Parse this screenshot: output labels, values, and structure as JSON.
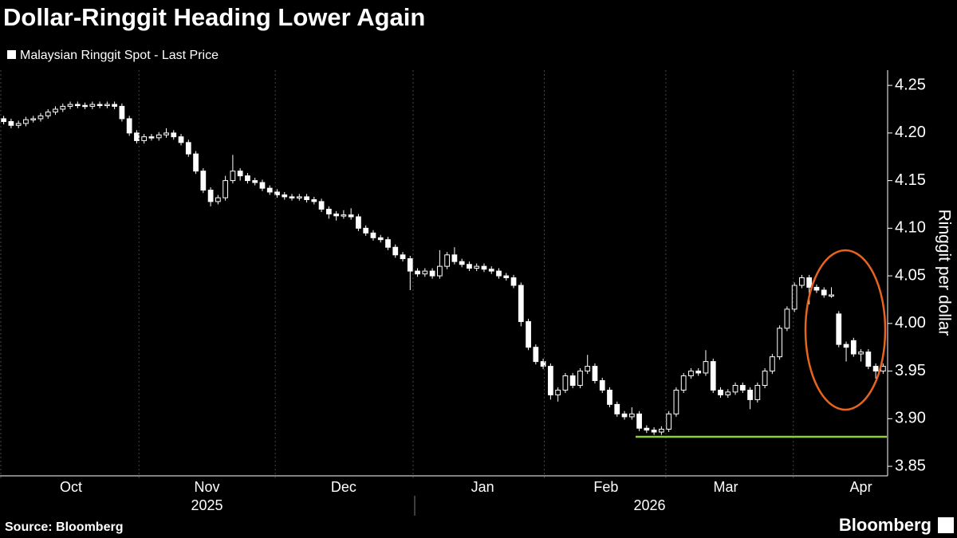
{
  "chart_data": {
    "type": "candlestick",
    "title": "Dollar-Ringgit Heading Lower Again",
    "series_name": "Malaysian Ringgit Spot - Last Price",
    "y_label": "Ringgit per dollar",
    "source": "Source: Bloomberg",
    "brand": "Bloomberg",
    "color": "#ffffff",
    "categories": [
      null,
      null,
      null,
      null,
      null,
      null,
      null,
      null,
      null,
      null,
      null,
      null,
      null,
      null,
      null,
      null,
      null,
      null,
      null,
      null,
      null,
      null,
      null,
      null,
      null,
      null,
      null,
      null,
      null,
      null,
      null,
      null,
      null,
      null,
      null,
      null,
      null,
      null,
      null,
      null,
      null,
      null,
      null,
      null,
      null,
      null,
      null,
      null,
      null,
      null,
      null,
      null,
      null,
      null,
      null,
      null,
      null,
      null,
      null,
      null,
      null,
      null,
      null,
      null,
      null,
      null,
      null,
      null,
      null,
      null,
      null,
      null,
      null,
      null,
      null,
      null,
      null,
      null,
      null,
      null,
      null,
      null,
      null,
      null,
      null,
      null,
      null,
      null,
      null,
      null,
      null,
      null,
      null,
      null,
      null,
      null,
      null,
      null,
      null,
      null,
      null,
      null,
      null,
      null,
      null,
      null,
      null,
      null,
      null,
      null,
      null,
      null,
      null,
      null,
      null,
      null,
      null,
      null,
      null,
      null
    ],
    "ohlc": [
      [
        4.215,
        4.218,
        4.209,
        4.212
      ],
      [
        4.212,
        4.215,
        4.205,
        4.208
      ],
      [
        4.208,
        4.213,
        4.205,
        4.21
      ],
      [
        4.21,
        4.217,
        4.207,
        4.214
      ],
      [
        4.214,
        4.218,
        4.211,
        4.215
      ],
      [
        4.215,
        4.221,
        4.212,
        4.218
      ],
      [
        4.218,
        4.225,
        4.215,
        4.222
      ],
      [
        4.222,
        4.228,
        4.219,
        4.225
      ],
      [
        4.225,
        4.231,
        4.222,
        4.228
      ],
      [
        4.228,
        4.233,
        4.225,
        4.23
      ],
      [
        4.23,
        4.233,
        4.226,
        4.229
      ],
      [
        4.229,
        4.232,
        4.225,
        4.228
      ],
      [
        4.228,
        4.233,
        4.225,
        4.23
      ],
      [
        4.23,
        4.233,
        4.226,
        4.229
      ],
      [
        4.229,
        4.233,
        4.226,
        4.23
      ],
      [
        4.23,
        4.233,
        4.225,
        4.228
      ],
      [
        4.228,
        4.231,
        4.212,
        4.215
      ],
      [
        4.215,
        4.218,
        4.197,
        4.2
      ],
      [
        4.2,
        4.203,
        4.189,
        4.192
      ],
      [
        4.192,
        4.199,
        4.189,
        4.196
      ],
      [
        4.196,
        4.199,
        4.192,
        4.195
      ],
      [
        4.195,
        4.201,
        4.192,
        4.198
      ],
      [
        4.198,
        4.205,
        4.195,
        4.2
      ],
      [
        4.2,
        4.203,
        4.193,
        4.196
      ],
      [
        4.196,
        4.199,
        4.187,
        4.19
      ],
      [
        4.19,
        4.193,
        4.175,
        4.178
      ],
      [
        4.178,
        4.181,
        4.157,
        4.16
      ],
      [
        4.16,
        4.163,
        4.137,
        4.14
      ],
      [
        4.14,
        4.143,
        4.123,
        4.128
      ],
      [
        4.128,
        4.135,
        4.125,
        4.132
      ],
      [
        4.132,
        4.155,
        4.129,
        4.15
      ],
      [
        4.15,
        4.177,
        4.147,
        4.16
      ],
      [
        4.16,
        4.163,
        4.15,
        4.155
      ],
      [
        4.155,
        4.158,
        4.147,
        4.15
      ],
      [
        4.15,
        4.153,
        4.145,
        4.148
      ],
      [
        4.148,
        4.151,
        4.139,
        4.142
      ],
      [
        4.142,
        4.145,
        4.135,
        4.138
      ],
      [
        4.138,
        4.141,
        4.132,
        4.135
      ],
      [
        4.135,
        4.138,
        4.13,
        4.133
      ],
      [
        4.133,
        4.136,
        4.129,
        4.132
      ],
      [
        4.132,
        4.136,
        4.129,
        4.133
      ],
      [
        4.133,
        4.136,
        4.127,
        4.13
      ],
      [
        4.13,
        4.133,
        4.125,
        4.128
      ],
      [
        4.128,
        4.131,
        4.117,
        4.12
      ],
      [
        4.12,
        4.123,
        4.11,
        4.115
      ],
      [
        4.115,
        4.118,
        4.108,
        4.113
      ],
      [
        4.113,
        4.119,
        4.11,
        4.114
      ],
      [
        4.114,
        4.121,
        4.109,
        4.112
      ],
      [
        4.112,
        4.115,
        4.097,
        4.1
      ],
      [
        4.1,
        4.103,
        4.092,
        4.095
      ],
      [
        4.095,
        4.098,
        4.087,
        4.09
      ],
      [
        4.09,
        4.093,
        4.085,
        4.088
      ],
      [
        4.088,
        4.091,
        4.077,
        4.08
      ],
      [
        4.08,
        4.083,
        4.069,
        4.072
      ],
      [
        4.072,
        4.075,
        4.065,
        4.068
      ],
      [
        4.068,
        4.071,
        4.035,
        4.055
      ],
      [
        4.055,
        4.058,
        4.049,
        4.052
      ],
      [
        4.052,
        4.058,
        4.049,
        4.055
      ],
      [
        4.055,
        4.058,
        4.047,
        4.05
      ],
      [
        4.05,
        4.077,
        4.047,
        4.06
      ],
      [
        4.06,
        4.075,
        4.057,
        4.072
      ],
      [
        4.072,
        4.08,
        4.062,
        4.065
      ],
      [
        4.065,
        4.068,
        4.059,
        4.062
      ],
      [
        4.062,
        4.065,
        4.055,
        4.058
      ],
      [
        4.058,
        4.063,
        4.055,
        4.06
      ],
      [
        4.06,
        4.063,
        4.054,
        4.057
      ],
      [
        4.057,
        4.06,
        4.052,
        4.055
      ],
      [
        4.055,
        4.058,
        4.047,
        4.05
      ],
      [
        4.05,
        4.053,
        4.045,
        4.048
      ],
      [
        4.048,
        4.051,
        4.037,
        4.04
      ],
      [
        4.04,
        4.043,
        3.997,
        4.002
      ],
      [
        4.002,
        4.005,
        3.972,
        3.975
      ],
      [
        3.975,
        3.978,
        3.957,
        3.96
      ],
      [
        3.96,
        3.963,
        3.952,
        3.955
      ],
      [
        3.955,
        3.958,
        3.92,
        3.925
      ],
      [
        3.925,
        3.933,
        3.918,
        3.93
      ],
      [
        3.93,
        3.948,
        3.927,
        3.945
      ],
      [
        3.945,
        3.948,
        3.932,
        3.935
      ],
      [
        3.935,
        3.953,
        3.932,
        3.95
      ],
      [
        3.95,
        3.967,
        3.947,
        3.955
      ],
      [
        3.955,
        3.958,
        3.937,
        3.94
      ],
      [
        3.94,
        3.943,
        3.927,
        3.93
      ],
      [
        3.93,
        3.933,
        3.912,
        3.915
      ],
      [
        3.915,
        3.918,
        3.902,
        3.905
      ],
      [
        3.905,
        3.908,
        3.899,
        3.902
      ],
      [
        3.902,
        3.912,
        3.899,
        3.905
      ],
      [
        3.905,
        3.908,
        3.887,
        3.89
      ],
      [
        3.89,
        3.893,
        3.885,
        3.888
      ],
      [
        3.888,
        3.891,
        3.883,
        3.886
      ],
      [
        3.886,
        3.892,
        3.883,
        3.889
      ],
      [
        3.889,
        3.908,
        3.886,
        3.905
      ],
      [
        3.905,
        3.933,
        3.902,
        3.93
      ],
      [
        3.93,
        3.948,
        3.927,
        3.945
      ],
      [
        3.945,
        3.953,
        3.942,
        3.95
      ],
      [
        3.95,
        3.953,
        3.945,
        3.948
      ],
      [
        3.948,
        3.972,
        3.945,
        3.96
      ],
      [
        3.96,
        3.963,
        3.927,
        3.93
      ],
      [
        3.93,
        3.933,
        3.922,
        3.925
      ],
      [
        3.925,
        3.931,
        3.922,
        3.928
      ],
      [
        3.928,
        3.938,
        3.925,
        3.935
      ],
      [
        3.935,
        3.938,
        3.927,
        3.93
      ],
      [
        3.93,
        3.933,
        3.91,
        3.92
      ],
      [
        3.92,
        3.938,
        3.917,
        3.935
      ],
      [
        3.935,
        3.953,
        3.932,
        3.95
      ],
      [
        3.95,
        3.968,
        3.947,
        3.965
      ],
      [
        3.965,
        3.998,
        3.962,
        3.995
      ],
      [
        3.995,
        4.018,
        3.992,
        4.015
      ],
      [
        4.015,
        4.043,
        4.012,
        4.04
      ],
      [
        4.04,
        4.051,
        4.037,
        4.048
      ],
      [
        4.048,
        4.051,
        4.02,
        4.038
      ],
      [
        4.038,
        4.041,
        4.032,
        4.035
      ],
      [
        4.035,
        4.038,
        4.027,
        4.03
      ],
      [
        4.03,
        4.038,
        4.027,
        4.03
      ],
      [
        4.01,
        4.013,
        3.975,
        3.978
      ],
      [
        3.978,
        3.981,
        3.96,
        3.975
      ],
      [
        3.982,
        3.985,
        3.965,
        3.968
      ],
      [
        3.968,
        3.973,
        3.96,
        3.97
      ],
      [
        3.97,
        3.973,
        3.952,
        3.955
      ],
      [
        3.955,
        3.958,
        3.942,
        3.95
      ],
      [
        3.95,
        3.958,
        3.947,
        3.955
      ]
    ],
    "xticks": [
      {
        "value": 9.1,
        "label": "Oct"
      },
      {
        "value": 27.5,
        "label": "Nov"
      },
      {
        "value": 46,
        "label": "Dec"
      },
      {
        "value": 64.8,
        "label": "Jan"
      },
      {
        "value": 81.5,
        "label": "Feb"
      },
      {
        "value": 97.7,
        "label": "Mar"
      },
      {
        "value": 116,
        "label": "Apr"
      }
    ],
    "year_ticks": [
      {
        "value": 27.5,
        "label": "2025"
      },
      {
        "value": 87.4,
        "label": "2026"
      }
    ],
    "ylim": [
      3.84,
      4.266
    ],
    "yticks": [
      3.85,
      {
        "value": 3.9,
        "label": "3.90"
      },
      3.95,
      {
        "value": 4.0,
        "label": "4.00"
      },
      4.05,
      {
        "value": 4.1,
        "label": "4.10"
      },
      4.15,
      {
        "value": 4.2,
        "label": "4.20"
      },
      4.25
    ],
    "support_line": {
      "value": 3.881,
      "start": 85.5,
      "color": "#8ed12a"
    }
  }
}
